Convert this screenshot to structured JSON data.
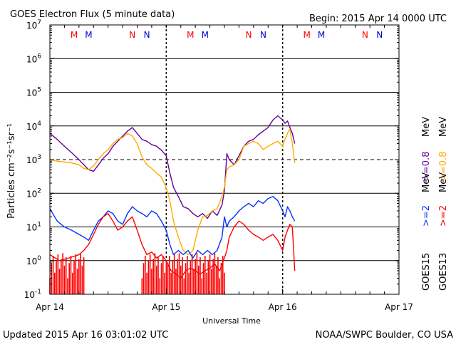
{
  "chart_data": {
    "type": "line",
    "title": "GOES Electron Flux (5 minute data)",
    "begin_label": "Begin: 2015 Apr 14 0000 UTC",
    "xlabel": "Universal Time",
    "x_tick_labels": [
      "Apr 14",
      "Apr 15",
      "Apr 16",
      "Apr 17"
    ],
    "xlim": [
      "2015-04-14T00:00",
      "2015-04-17T00:00"
    ],
    "ylabel": "Particles cm⁻²s⁻¹sr⁻¹",
    "y_scale": "log",
    "ylim": [
      0.1,
      10000000
    ],
    "y_tick_exponents": [
      -1,
      0,
      1,
      2,
      3,
      4,
      5,
      6,
      7
    ],
    "y_tick_base": "10",
    "reference_line": 1000,
    "grid": true,
    "noon_markers": [
      {
        "label": "M",
        "color": "#ff0000",
        "x": "2015-04-14T05:00"
      },
      {
        "label": "M",
        "color": "#0000cc",
        "x": "2015-04-14T08:00"
      },
      {
        "label": "N",
        "color": "#ff0000",
        "x": "2015-04-14T17:00"
      },
      {
        "label": "N",
        "color": "#0000cc",
        "x": "2015-04-14T20:00"
      },
      {
        "label": "M",
        "color": "#ff0000",
        "x": "2015-04-15T05:00"
      },
      {
        "label": "M",
        "color": "#0000cc",
        "x": "2015-04-15T08:00"
      },
      {
        "label": "N",
        "color": "#ff0000",
        "x": "2015-04-15T17:00"
      },
      {
        "label": "N",
        "color": "#0000cc",
        "x": "2015-04-15T20:00"
      },
      {
        "label": "M",
        "color": "#ff0000",
        "x": "2015-04-16T05:00"
      },
      {
        "label": "M",
        "color": "#0000cc",
        "x": "2015-04-16T08:00"
      },
      {
        "label": "N",
        "color": "#ff0000",
        "x": "2015-04-16T17:00"
      },
      {
        "label": "N",
        "color": "#0000cc",
        "x": "2015-04-16T20:00"
      }
    ],
    "dashed_time_markers": [
      "2015-04-15T00:00",
      "2015-04-16T00:00"
    ],
    "legend": {
      "upper_energy_1": ">=0.8",
      "upper_energy_2": ">=0.8",
      "upper_unit": "MeV",
      "lower_energy_1": ">=2",
      "lower_energy_2": ">=2",
      "lower_unit": "MeV",
      "sat_1": "GOES15",
      "sat_2": "GOES13"
    },
    "series": [
      {
        "name": "GOES15 >=0.8 MeV",
        "color": "#660099",
        "points": [
          [
            "2015-04-14T00:00",
            6000
          ],
          [
            "2015-04-14T01:30",
            4000
          ],
          [
            "2015-04-14T03:00",
            2500
          ],
          [
            "2015-04-14T04:30",
            1600
          ],
          [
            "2015-04-14T06:00",
            1000
          ],
          [
            "2015-04-14T07:00",
            700
          ],
          [
            "2015-04-14T08:00",
            500
          ],
          [
            "2015-04-14T09:00",
            450
          ],
          [
            "2015-04-14T10:00",
            700
          ],
          [
            "2015-04-14T11:00",
            1100
          ],
          [
            "2015-04-14T12:00",
            1500
          ],
          [
            "2015-04-14T13:00",
            2500
          ],
          [
            "2015-04-14T14:00",
            3500
          ],
          [
            "2015-04-14T15:00",
            5000
          ],
          [
            "2015-04-14T16:00",
            7000
          ],
          [
            "2015-04-14T17:00",
            9000
          ],
          [
            "2015-04-14T18:00",
            6000
          ],
          [
            "2015-04-14T19:00",
            4000
          ],
          [
            "2015-04-14T20:00",
            3500
          ],
          [
            "2015-04-14T21:00",
            2800
          ],
          [
            "2015-04-14T22:00",
            2500
          ],
          [
            "2015-04-14T23:00",
            1900
          ],
          [
            "2015-04-15T00:00",
            1300
          ],
          [
            "2015-04-15T00:45",
            400
          ],
          [
            "2015-04-15T01:30",
            150
          ],
          [
            "2015-04-15T02:30",
            80
          ],
          [
            "2015-04-15T03:30",
            40
          ],
          [
            "2015-04-15T04:30",
            35
          ],
          [
            "2015-04-15T05:30",
            25
          ],
          [
            "2015-04-15T06:30",
            20
          ],
          [
            "2015-04-15T07:30",
            25
          ],
          [
            "2015-04-15T08:30",
            18
          ],
          [
            "2015-04-15T09:30",
            30
          ],
          [
            "2015-04-15T10:30",
            22
          ],
          [
            "2015-04-15T11:30",
            45
          ],
          [
            "2015-04-15T12:00",
            120
          ],
          [
            "2015-04-15T12:30",
            1500
          ],
          [
            "2015-04-15T13:00",
            1000
          ],
          [
            "2015-04-15T14:00",
            700
          ],
          [
            "2015-04-15T15:00",
            1300
          ],
          [
            "2015-04-15T16:00",
            2500
          ],
          [
            "2015-04-15T17:00",
            3500
          ],
          [
            "2015-04-15T18:00",
            4000
          ],
          [
            "2015-04-15T19:00",
            5500
          ],
          [
            "2015-04-15T20:00",
            7000
          ],
          [
            "2015-04-15T21:00",
            9000
          ],
          [
            "2015-04-15T22:00",
            15000
          ],
          [
            "2015-04-15T23:00",
            20000
          ],
          [
            "2015-04-16T00:00",
            15000
          ],
          [
            "2015-04-16T00:30",
            12000
          ],
          [
            "2015-04-16T01:00",
            14000
          ],
          [
            "2015-04-16T01:30",
            9000
          ],
          [
            "2015-04-16T02:00",
            6000
          ],
          [
            "2015-04-16T02:30",
            3000
          ]
        ]
      },
      {
        "name": "GOES13 >=0.8 MeV",
        "color": "#ffaa00",
        "points": [
          [
            "2015-04-14T00:00",
            1000
          ],
          [
            "2015-04-14T01:30",
            900
          ],
          [
            "2015-04-14T03:00",
            850
          ],
          [
            "2015-04-14T04:30",
            800
          ],
          [
            "2015-04-14T06:00",
            700
          ],
          [
            "2015-04-14T07:00",
            550
          ],
          [
            "2015-04-14T08:00",
            500
          ],
          [
            "2015-04-14T09:00",
            650
          ],
          [
            "2015-04-14T10:00",
            1000
          ],
          [
            "2015-04-14T11:00",
            1500
          ],
          [
            "2015-04-14T12:00",
            2000
          ],
          [
            "2015-04-14T13:00",
            3000
          ],
          [
            "2015-04-14T14:00",
            4000
          ],
          [
            "2015-04-14T15:00",
            4500
          ],
          [
            "2015-04-14T16:00",
            6000
          ],
          [
            "2015-04-14T17:00",
            5000
          ],
          [
            "2015-04-14T18:00",
            3000
          ],
          [
            "2015-04-14T19:00",
            1200
          ],
          [
            "2015-04-14T20:00",
            700
          ],
          [
            "2015-04-14T21:00",
            550
          ],
          [
            "2015-04-14T22:00",
            400
          ],
          [
            "2015-04-14T23:00",
            300
          ],
          [
            "2015-04-15T00:00",
            150
          ],
          [
            "2015-04-15T00:45",
            60
          ],
          [
            "2015-04-15T01:30",
            15
          ],
          [
            "2015-04-15T02:30",
            5
          ],
          [
            "2015-04-15T03:30",
            2
          ],
          [
            "2015-04-15T04:30",
            1.5
          ],
          [
            "2015-04-15T05:30",
            2
          ],
          [
            "2015-04-15T06:30",
            8
          ],
          [
            "2015-04-15T07:30",
            20
          ],
          [
            "2015-04-15T08:30",
            22
          ],
          [
            "2015-04-15T09:30",
            30
          ],
          [
            "2015-04-15T10:30",
            35
          ],
          [
            "2015-04-15T11:30",
            80
          ],
          [
            "2015-04-15T12:00",
            150
          ],
          [
            "2015-04-15T12:30",
            500
          ],
          [
            "2015-04-15T13:00",
            600
          ],
          [
            "2015-04-15T14:00",
            700
          ],
          [
            "2015-04-15T15:00",
            1000
          ],
          [
            "2015-04-15T16:00",
            2500
          ],
          [
            "2015-04-15T17:00",
            3000
          ],
          [
            "2015-04-15T18:00",
            3500
          ],
          [
            "2015-04-15T19:00",
            3000
          ],
          [
            "2015-04-15T20:00",
            2000
          ],
          [
            "2015-04-15T21:00",
            2500
          ],
          [
            "2015-04-15T22:00",
            3000
          ],
          [
            "2015-04-15T23:00",
            3500
          ],
          [
            "2015-04-16T00:00",
            2500
          ],
          [
            "2015-04-16T00:30",
            4000
          ],
          [
            "2015-04-16T01:00",
            6000
          ],
          [
            "2015-04-16T01:30",
            8000
          ],
          [
            "2015-04-16T02:00",
            3000
          ],
          [
            "2015-04-16T02:30",
            800
          ]
        ]
      },
      {
        "name": "GOES15 >=2 MeV",
        "color": "#0033ff",
        "points": [
          [
            "2015-04-14T00:00",
            35
          ],
          [
            "2015-04-14T01:30",
            15
          ],
          [
            "2015-04-14T03:00",
            10
          ],
          [
            "2015-04-14T04:30",
            8
          ],
          [
            "2015-04-14T06:00",
            6
          ],
          [
            "2015-04-14T07:00",
            5
          ],
          [
            "2015-04-14T08:00",
            4
          ],
          [
            "2015-04-14T09:00",
            8
          ],
          [
            "2015-04-14T10:00",
            15
          ],
          [
            "2015-04-14T11:00",
            20
          ],
          [
            "2015-04-14T12:00",
            30
          ],
          [
            "2015-04-14T13:00",
            25
          ],
          [
            "2015-04-14T14:00",
            15
          ],
          [
            "2015-04-14T15:00",
            12
          ],
          [
            "2015-04-14T16:00",
            25
          ],
          [
            "2015-04-14T17:00",
            40
          ],
          [
            "2015-04-14T18:00",
            30
          ],
          [
            "2015-04-14T19:00",
            25
          ],
          [
            "2015-04-14T20:00",
            20
          ],
          [
            "2015-04-14T21:00",
            30
          ],
          [
            "2015-04-14T22:00",
            25
          ],
          [
            "2015-04-14T23:00",
            15
          ],
          [
            "2015-04-15T00:00",
            8
          ],
          [
            "2015-04-15T00:45",
            3
          ],
          [
            "2015-04-15T01:30",
            1.5
          ],
          [
            "2015-04-15T02:30",
            2
          ],
          [
            "2015-04-15T03:30",
            1.5
          ],
          [
            "2015-04-15T04:30",
            2
          ],
          [
            "2015-04-15T05:30",
            1.2
          ],
          [
            "2015-04-15T06:30",
            2
          ],
          [
            "2015-04-15T07:30",
            1.5
          ],
          [
            "2015-04-15T08:30",
            2
          ],
          [
            "2015-04-15T09:30",
            1.5
          ],
          [
            "2015-04-15T10:30",
            2
          ],
          [
            "2015-04-15T11:30",
            5
          ],
          [
            "2015-04-15T12:00",
            20
          ],
          [
            "2015-04-15T12:30",
            10
          ],
          [
            "2015-04-15T13:00",
            15
          ],
          [
            "2015-04-15T14:00",
            20
          ],
          [
            "2015-04-15T15:00",
            30
          ],
          [
            "2015-04-15T16:00",
            40
          ],
          [
            "2015-04-15T17:00",
            50
          ],
          [
            "2015-04-15T18:00",
            40
          ],
          [
            "2015-04-15T19:00",
            60
          ],
          [
            "2015-04-15T20:00",
            50
          ],
          [
            "2015-04-15T21:00",
            70
          ],
          [
            "2015-04-15T22:00",
            80
          ],
          [
            "2015-04-15T23:00",
            60
          ],
          [
            "2015-04-16T00:00",
            30
          ],
          [
            "2015-04-16T00:30",
            20
          ],
          [
            "2015-04-16T01:00",
            40
          ],
          [
            "2015-04-16T01:30",
            30
          ],
          [
            "2015-04-16T02:00",
            20
          ],
          [
            "2015-04-16T02:30",
            15
          ]
        ]
      },
      {
        "name": "GOES13 >=2 MeV",
        "color": "#ff0000",
        "points": [
          [
            "2015-04-14T00:00",
            1.5
          ],
          [
            "2015-04-14T02:00",
            1
          ],
          [
            "2015-04-14T04:00",
            1.2
          ],
          [
            "2015-04-14T06:00",
            1.5
          ],
          [
            "2015-04-14T07:00",
            2
          ],
          [
            "2015-04-14T08:00",
            3
          ],
          [
            "2015-04-14T09:00",
            6
          ],
          [
            "2015-04-14T10:00",
            12
          ],
          [
            "2015-04-14T11:00",
            20
          ],
          [
            "2015-04-14T12:00",
            25
          ],
          [
            "2015-04-14T13:00",
            15
          ],
          [
            "2015-04-14T14:00",
            8
          ],
          [
            "2015-04-14T15:00",
            10
          ],
          [
            "2015-04-14T16:00",
            15
          ],
          [
            "2015-04-14T17:00",
            20
          ],
          [
            "2015-04-14T18:00",
            8
          ],
          [
            "2015-04-14T19:00",
            3
          ],
          [
            "2015-04-14T20:00",
            1.5
          ],
          [
            "2015-04-14T21:00",
            1.8
          ],
          [
            "2015-04-14T22:00",
            1.2
          ],
          [
            "2015-04-14T23:00",
            1.5
          ],
          [
            "2015-04-15T00:00",
            1
          ],
          [
            "2015-04-15T01:00",
            0.5
          ],
          [
            "2015-04-15T02:00",
            0.4
          ],
          [
            "2015-04-15T03:00",
            0.3
          ],
          [
            "2015-04-15T04:00",
            0.5
          ],
          [
            "2015-04-15T05:00",
            0.6
          ],
          [
            "2015-04-15T06:00",
            0.5
          ],
          [
            "2015-04-15T07:00",
            0.4
          ],
          [
            "2015-04-15T08:00",
            0.5
          ],
          [
            "2015-04-15T09:00",
            0.6
          ],
          [
            "2015-04-15T10:00",
            0.8
          ],
          [
            "2015-04-15T11:00",
            0.5
          ],
          [
            "2015-04-15T12:00",
            1.2
          ],
          [
            "2015-04-15T12:30",
            2
          ],
          [
            "2015-04-15T13:00",
            5
          ],
          [
            "2015-04-15T14:00",
            10
          ],
          [
            "2015-04-15T15:00",
            15
          ],
          [
            "2015-04-15T16:00",
            12
          ],
          [
            "2015-04-15T17:00",
            8
          ],
          [
            "2015-04-15T18:00",
            6
          ],
          [
            "2015-04-15T19:00",
            5
          ],
          [
            "2015-04-15T20:00",
            4
          ],
          [
            "2015-04-15T21:00",
            5
          ],
          [
            "2015-04-15T22:00",
            6
          ],
          [
            "2015-04-15T23:00",
            4
          ],
          [
            "2015-04-16T00:00",
            2
          ],
          [
            "2015-04-16T00:30",
            5
          ],
          [
            "2015-04-16T01:00",
            8
          ],
          [
            "2015-04-16T01:30",
            12
          ],
          [
            "2015-04-16T02:00",
            10
          ],
          [
            "2015-04-16T02:30",
            0.5
          ]
        ]
      }
    ],
    "floor_spikes": {
      "name": "GOES13 >=2 MeV",
      "color": "#ff0000",
      "ranges": [
        [
          "2015-04-14T00:00",
          "2015-04-14T07:00"
        ],
        [
          "2015-04-14T19:00",
          "2015-04-15T00:00"
        ],
        [
          "2015-04-15T00:00",
          "2015-04-15T12:00"
        ]
      ]
    }
  },
  "footer": {
    "updated": "Updated 2015 Apr 16 03:01:02 UTC",
    "credit": "NOAA/SWPC Boulder, CO USA"
  }
}
